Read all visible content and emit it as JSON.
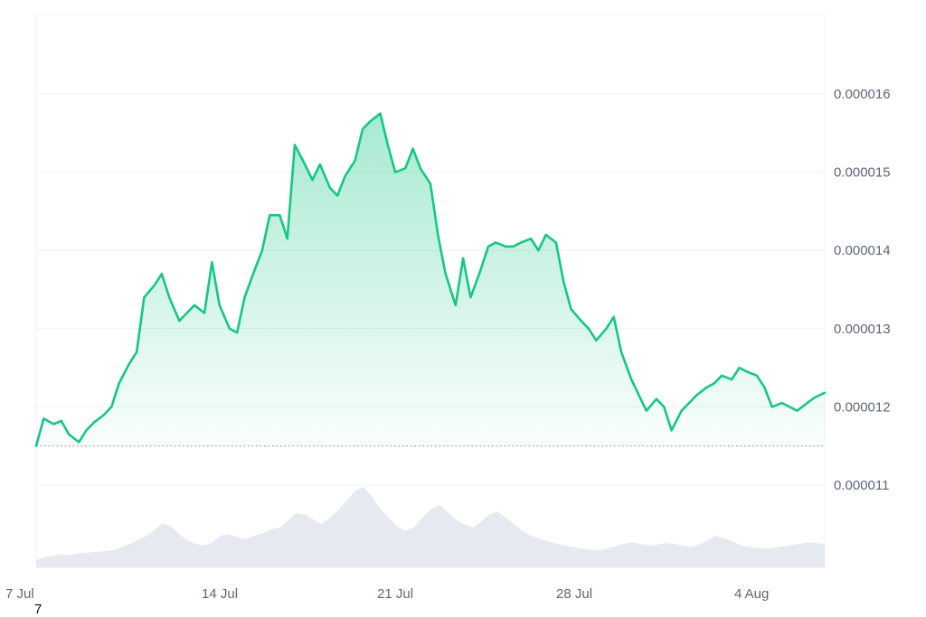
{
  "chart_data": {
    "type": "area",
    "x_ticks": [
      "7 Jul",
      "14 Jul",
      "21 Jul",
      "28 Jul",
      "4 Aug"
    ],
    "y_ticks": [
      "0.000016",
      "0.000015",
      "0.000014",
      "0.000013",
      "0.000012",
      "0.000011"
    ],
    "ylim": [
      1e-05,
      1.7e-05
    ],
    "xlim": [
      0,
      31.4
    ],
    "baseline": 1.15e-05,
    "grid": true,
    "series": [
      {
        "color": "#16c784",
        "x": [
          0,
          0.3,
          0.7,
          1.0,
          1.3,
          1.7,
          2.0,
          2.3,
          2.7,
          3.0,
          3.3,
          3.7,
          4.0,
          4.3,
          4.7,
          5.0,
          5.3,
          5.7,
          6.0,
          6.3,
          6.7,
          7.0,
          7.3,
          7.7,
          8.0,
          8.3,
          8.7,
          9.0,
          9.3,
          9.7,
          10.0,
          10.3,
          10.7,
          11.0,
          11.3,
          11.7,
          12.0,
          12.3,
          12.7,
          13.0,
          13.3,
          13.7,
          14.0,
          14.3,
          14.7,
          15.0,
          15.3,
          15.7,
          16.0,
          16.3,
          16.7,
          17.0,
          17.3,
          17.7,
          18.0,
          18.3,
          18.7,
          19.0,
          19.3,
          19.7,
          20.0,
          20.3,
          20.7,
          21.0,
          21.3,
          21.7,
          22.0,
          22.3,
          22.7,
          23.0,
          23.3,
          23.7,
          24.0,
          24.3,
          24.7,
          25.0,
          25.3,
          25.7,
          26.0,
          26.3,
          26.7,
          27.0,
          27.3,
          27.7,
          28.0,
          28.3,
          28.7,
          29.0,
          29.3,
          29.7,
          30.0,
          30.3,
          30.7,
          31.0,
          31.4
        ],
        "values": [
          1.15e-05,
          1.185e-05,
          1.178e-05,
          1.182e-05,
          1.165e-05,
          1.155e-05,
          1.17e-05,
          1.18e-05,
          1.19e-05,
          1.2e-05,
          1.23e-05,
          1.255e-05,
          1.27e-05,
          1.34e-05,
          1.355e-05,
          1.37e-05,
          1.34e-05,
          1.31e-05,
          1.32e-05,
          1.33e-05,
          1.32e-05,
          1.385e-05,
          1.33e-05,
          1.3e-05,
          1.295e-05,
          1.34e-05,
          1.375e-05,
          1.4e-05,
          1.445e-05,
          1.445e-05,
          1.415e-05,
          1.535e-05,
          1.51e-05,
          1.49e-05,
          1.51e-05,
          1.48e-05,
          1.47e-05,
          1.495e-05,
          1.515e-05,
          1.555e-05,
          1.565e-05,
          1.575e-05,
          1.535e-05,
          1.5e-05,
          1.505e-05,
          1.53e-05,
          1.505e-05,
          1.485e-05,
          1.42e-05,
          1.37e-05,
          1.33e-05,
          1.39e-05,
          1.34e-05,
          1.375e-05,
          1.405e-05,
          1.41e-05,
          1.405e-05,
          1.405e-05,
          1.41e-05,
          1.415e-05,
          1.4e-05,
          1.42e-05,
          1.41e-05,
          1.36e-05,
          1.325e-05,
          1.31e-05,
          1.3e-05,
          1.285e-05,
          1.3e-05,
          1.315e-05,
          1.27e-05,
          1.235e-05,
          1.215e-05,
          1.195e-05,
          1.21e-05,
          1.2e-05,
          1.17e-05,
          1.195e-05,
          1.205e-05,
          1.215e-05,
          1.225e-05,
          1.23e-05,
          1.24e-05,
          1.235e-05,
          1.25e-05,
          1.245e-05,
          1.24e-05,
          1.225e-05,
          1.2e-05,
          1.205e-05,
          1.2e-05,
          1.195e-05,
          1.205e-05,
          1.212e-05,
          1.218e-05
        ]
      }
    ],
    "volume": [
      0.0,
      0.04,
      0.05,
      0.07,
      0.06,
      0.08,
      0.09,
      0.1,
      0.11,
      0.12,
      0.15,
      0.19,
      0.24,
      0.29,
      0.36,
      0.45,
      0.42,
      0.33,
      0.24,
      0.2,
      0.18,
      0.22,
      0.3,
      0.32,
      0.28,
      0.26,
      0.3,
      0.33,
      0.38,
      0.4,
      0.48,
      0.58,
      0.56,
      0.5,
      0.44,
      0.52,
      0.62,
      0.73,
      0.85,
      0.9,
      0.78,
      0.64,
      0.52,
      0.42,
      0.36,
      0.4,
      0.52,
      0.62,
      0.68,
      0.6,
      0.5,
      0.44,
      0.4,
      0.47,
      0.56,
      0.6,
      0.52,
      0.44,
      0.36,
      0.3,
      0.26,
      0.23,
      0.2,
      0.18,
      0.16,
      0.14,
      0.13,
      0.12,
      0.14,
      0.17,
      0.2,
      0.22,
      0.2,
      0.18,
      0.19,
      0.21,
      0.2,
      0.18,
      0.16,
      0.19,
      0.24,
      0.3,
      0.27,
      0.23,
      0.18,
      0.16,
      0.15,
      0.14,
      0.15,
      0.17,
      0.18,
      0.2,
      0.22,
      0.21,
      0.2
    ],
    "colors": {
      "line": "#16c784",
      "area_top": "#16c784",
      "volume": "#e6e9ef",
      "grid": "#eef0f3",
      "baseline": "#8a919e"
    }
  },
  "extra_label": "7"
}
